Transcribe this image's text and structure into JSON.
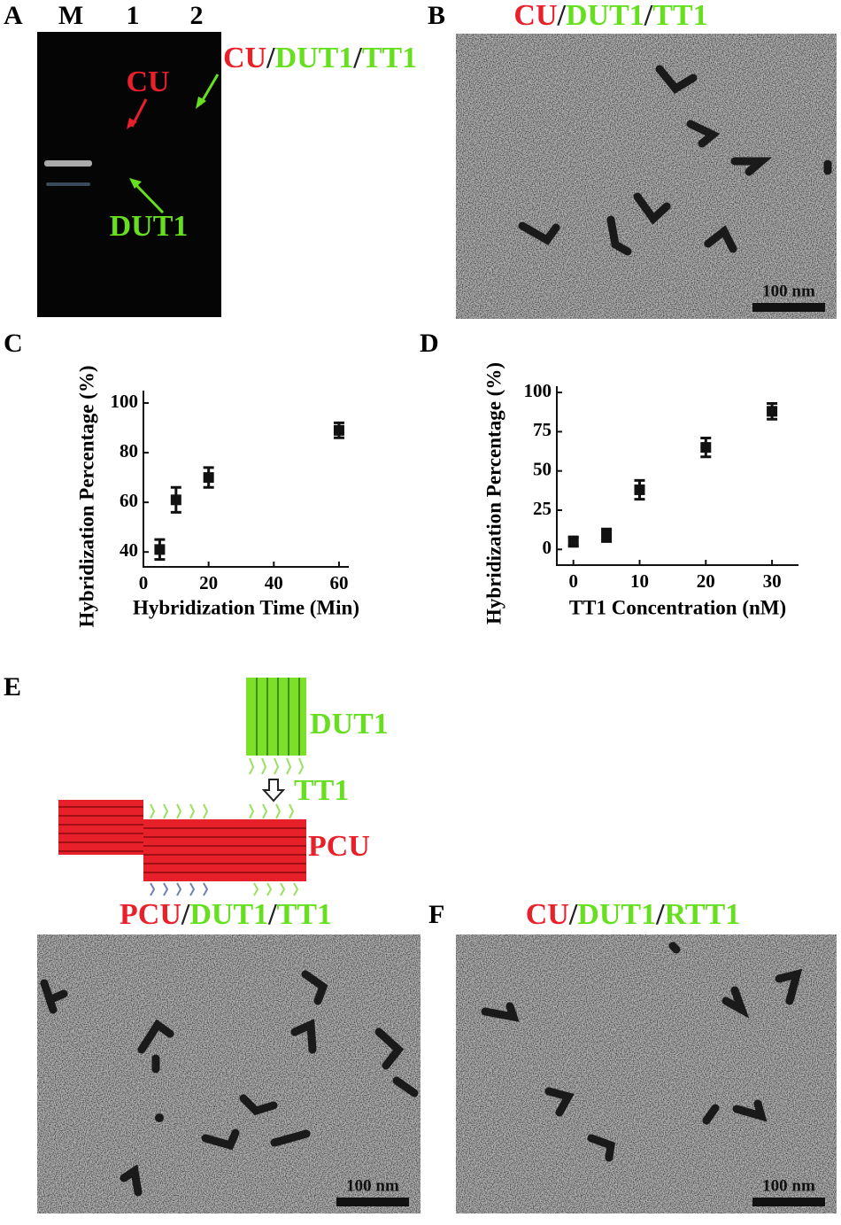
{
  "panels": {
    "a": {
      "label": "A",
      "lanes": [
        "M",
        "1",
        "2"
      ],
      "annotations": [
        "CU",
        "DUT1"
      ],
      "title_parts": [
        {
          "text": "CU",
          "color": "#e8202a"
        },
        {
          "text": "/",
          "color": "#222222"
        },
        {
          "text": "DUT1",
          "color": "#66e01e"
        },
        {
          "text": "/",
          "color": "#222222"
        },
        {
          "text": "TT1",
          "color": "#66e01e"
        }
      ]
    },
    "b": {
      "label": "B",
      "scale_bar": "100 nm",
      "title_parts": [
        {
          "text": "CU",
          "color": "#e8202a"
        },
        {
          "text": "/",
          "color": "#222222"
        },
        {
          "text": "DUT1",
          "color": "#66e01e"
        },
        {
          "text": "/",
          "color": "#222222"
        },
        {
          "text": "TT1",
          "color": "#66e01e"
        }
      ]
    },
    "c": {
      "label": "C"
    },
    "d": {
      "label": "D"
    },
    "e": {
      "label": "E",
      "labels": [
        {
          "text": "DUT1",
          "color": "#66e01e"
        },
        {
          "text": "TT1",
          "color": "#66e01e"
        },
        {
          "text": "PCU",
          "color": "#e8202a"
        }
      ],
      "scale_bar": "100 nm",
      "title_parts": [
        {
          "text": "PCU",
          "color": "#e8202a"
        },
        {
          "text": "/",
          "color": "#222222"
        },
        {
          "text": "DUT1",
          "color": "#66e01e"
        },
        {
          "text": "/",
          "color": "#222222"
        },
        {
          "text": "TT1",
          "color": "#66e01e"
        }
      ]
    },
    "f": {
      "label": "F",
      "scale_bar": "100 nm",
      "title_parts": [
        {
          "text": "CU",
          "color": "#e8202a"
        },
        {
          "text": "/",
          "color": "#222222"
        },
        {
          "text": "DUT1",
          "color": "#66e01e"
        },
        {
          "text": "/",
          "color": "#222222"
        },
        {
          "text": "RTT1",
          "color": "#66e01e"
        }
      ]
    }
  },
  "chart_data": [
    {
      "type": "scatter",
      "x_label": "Hybridization Time (Min)",
      "y_label": "Hybridization Percentage (%)",
      "x": [
        5,
        10,
        20,
        60
      ],
      "values": [
        41,
        61,
        70,
        89
      ],
      "errors": [
        4,
        5,
        4,
        3
      ],
      "color": "#111111",
      "xlim": [
        0,
        63
      ],
      "ylim": [
        34,
        105
      ],
      "xticks": [
        0,
        20,
        40,
        60
      ],
      "yticks": [
        40,
        60,
        80,
        100
      ]
    },
    {
      "type": "scatter",
      "x_label": "TT1 Concentration (nM)",
      "y_label": "Hybridization Percentage (%)",
      "x": [
        0,
        5,
        10,
        20,
        30
      ],
      "values": [
        5,
        9,
        38,
        65,
        88
      ],
      "errors": [
        3,
        4,
        6,
        6,
        5
      ],
      "color": "#111111",
      "xlim": [
        -2.5,
        34
      ],
      "ylim": [
        -10,
        104
      ],
      "xticks": [
        0,
        10,
        20,
        30
      ],
      "yticks": [
        0,
        25,
        50,
        75,
        100
      ]
    }
  ]
}
